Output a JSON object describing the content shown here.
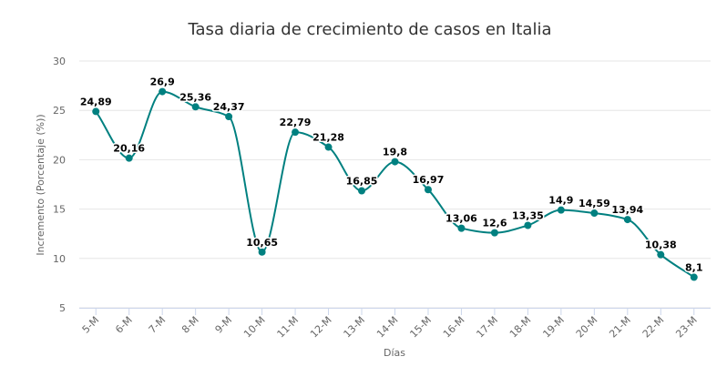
{
  "chart_data": {
    "type": "line",
    "title": "Tasa diaria de crecimiento de casos en Italia",
    "xlabel": "Días",
    "ylabel": "Incremento (Porcentaje (%))",
    "categories": [
      "5-M",
      "6-M",
      "7-M",
      "8-M",
      "9-M",
      "10-M",
      "11-M",
      "12-M",
      "13-M",
      "14-M",
      "15-M",
      "16-M",
      "17-M",
      "18-M",
      "19-M",
      "20-M",
      "21-M",
      "22-M",
      "23-M"
    ],
    "series": [
      {
        "values": [
          24.89,
          20.16,
          26.9,
          25.36,
          24.37,
          10.65,
          22.79,
          21.28,
          16.85,
          19.8,
          16.97,
          13.06,
          12.6,
          13.35,
          14.9,
          14.59,
          13.94,
          10.38,
          8.1
        ],
        "labels": [
          "24,89",
          "20,16",
          "26,9",
          "25,36",
          "24,37",
          "10,65",
          "22,79",
          "21,28",
          "16,85",
          "19,8",
          "16,97",
          "13,06",
          "12,6",
          "13,35",
          "14,9",
          "14,59",
          "13,94",
          "10,38",
          "8,1"
        ],
        "color": "#008080"
      }
    ],
    "ylim": [
      5,
      30
    ],
    "yticks": [
      5,
      10,
      15,
      20,
      25,
      30
    ],
    "grid": true,
    "legend": "none"
  }
}
